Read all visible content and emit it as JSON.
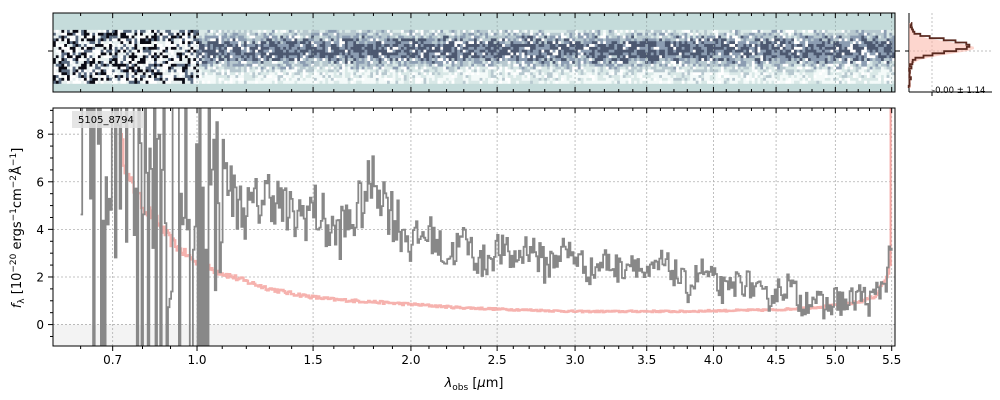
{
  "chart_data": [
    {
      "type": "heatmap",
      "panel": "2d-spectrum",
      "colormap": "bone-teal",
      "background_color": "#c5dcdb",
      "trace_center_row_fraction": 0.45,
      "noisy_blue_end_um": 1.0
    },
    {
      "type": "line",
      "panel": "profile",
      "annotation": "-0.00 ± 1.14",
      "color_model": "#fbb4a6",
      "color_data": "#5a2a20",
      "peak_offset": 0.0
    },
    {
      "type": "line",
      "panel": "1d-spectrum",
      "title": "",
      "label": "5105_8794",
      "xlabel": "λ_obs [μm]",
      "ylabel": "f_λ [10^-20 ergs^-1cm^-2Å^-1]",
      "x_scale": "sqrt",
      "xlim": [
        0.52,
        5.53
      ],
      "ylim": [
        -0.9,
        9.1
      ],
      "xticks": [
        0.7,
        1.0,
        1.5,
        2.0,
        2.5,
        3.0,
        3.5,
        4.0,
        4.5,
        5.0,
        5.5
      ],
      "xtick_labels": [
        "0.7",
        "1.0",
        "1.5",
        "2.0",
        "2.5",
        "3.0",
        "3.5",
        "4.0",
        "4.5",
        "5.0",
        "5.5"
      ],
      "yticks": [
        0,
        2,
        4,
        6,
        8
      ],
      "grid": true,
      "series": [
        {
          "role": "flux",
          "color": "#888888",
          "points": [
            [
              0.78,
              7.2
            ],
            [
              0.82,
              5.0
            ],
            [
              0.86,
              8.6
            ],
            [
              0.9,
              3.4
            ],
            [
              0.95,
              7.9
            ],
            [
              1.0,
              5.6
            ],
            [
              1.05,
              4.2
            ],
            [
              1.1,
              6.8
            ],
            [
              1.15,
              5.2
            ],
            [
              1.2,
              4.7
            ],
            [
              1.3,
              5.6
            ],
            [
              1.4,
              4.4
            ],
            [
              1.5,
              4.9
            ],
            [
              1.6,
              3.7
            ],
            [
              1.7,
              4.5
            ],
            [
              1.8,
              6.2
            ],
            [
              1.9,
              4.6
            ],
            [
              2.0,
              3.5
            ],
            [
              2.1,
              3.9
            ],
            [
              2.2,
              2.8
            ],
            [
              2.3,
              3.6
            ],
            [
              2.4,
              2.5
            ],
            [
              2.5,
              3.2
            ],
            [
              2.6,
              2.7
            ],
            [
              2.7,
              3.4
            ],
            [
              2.8,
              2.4
            ],
            [
              2.9,
              3.1
            ],
            [
              3.0,
              2.9
            ],
            [
              3.1,
              2.2
            ],
            [
              3.2,
              2.7
            ],
            [
              3.3,
              2.3
            ],
            [
              3.4,
              2.8
            ],
            [
              3.5,
              1.9
            ],
            [
              3.6,
              2.6
            ],
            [
              3.7,
              2.2
            ],
            [
              3.8,
              1.5
            ],
            [
              3.9,
              2.3
            ],
            [
              4.0,
              1.8
            ],
            [
              4.1,
              1.3
            ],
            [
              4.2,
              1.9
            ],
            [
              4.3,
              1.6
            ],
            [
              4.4,
              1.0
            ],
            [
              4.5,
              1.4
            ],
            [
              4.6,
              1.7
            ],
            [
              4.7,
              0.9
            ],
            [
              4.8,
              1.2
            ],
            [
              4.9,
              0.6
            ],
            [
              5.0,
              1.1
            ],
            [
              5.1,
              0.8
            ],
            [
              5.2,
              1.3
            ],
            [
              5.3,
              0.9
            ],
            [
              5.4,
              1.6
            ],
            [
              5.45,
              2.0
            ],
            [
              5.49,
              3.6
            ]
          ]
        },
        {
          "role": "error",
          "color": "#f4a4a0",
          "points": [
            [
              0.72,
              8.0
            ],
            [
              0.75,
              6.1
            ],
            [
              0.8,
              5.0
            ],
            [
              0.85,
              4.3
            ],
            [
              0.9,
              3.5
            ],
            [
              0.95,
              3.0
            ],
            [
              1.0,
              2.55
            ],
            [
              1.1,
              2.15
            ],
            [
              1.2,
              1.8
            ],
            [
              1.3,
              1.5
            ],
            [
              1.4,
              1.3
            ],
            [
              1.5,
              1.15
            ],
            [
              1.6,
              1.05
            ],
            [
              1.8,
              0.95
            ],
            [
              2.0,
              0.85
            ],
            [
              2.25,
              0.72
            ],
            [
              2.5,
              0.65
            ],
            [
              2.75,
              0.6
            ],
            [
              3.0,
              0.55
            ],
            [
              3.25,
              0.55
            ],
            [
              3.5,
              0.56
            ],
            [
              3.75,
              0.55
            ],
            [
              4.0,
              0.58
            ],
            [
              4.25,
              0.6
            ],
            [
              4.5,
              0.62
            ],
            [
              4.75,
              0.7
            ],
            [
              5.0,
              0.8
            ],
            [
              5.2,
              0.95
            ],
            [
              5.35,
              1.2
            ],
            [
              5.45,
              2.0
            ],
            [
              5.49,
              2.6
            ]
          ]
        }
      ]
    }
  ]
}
